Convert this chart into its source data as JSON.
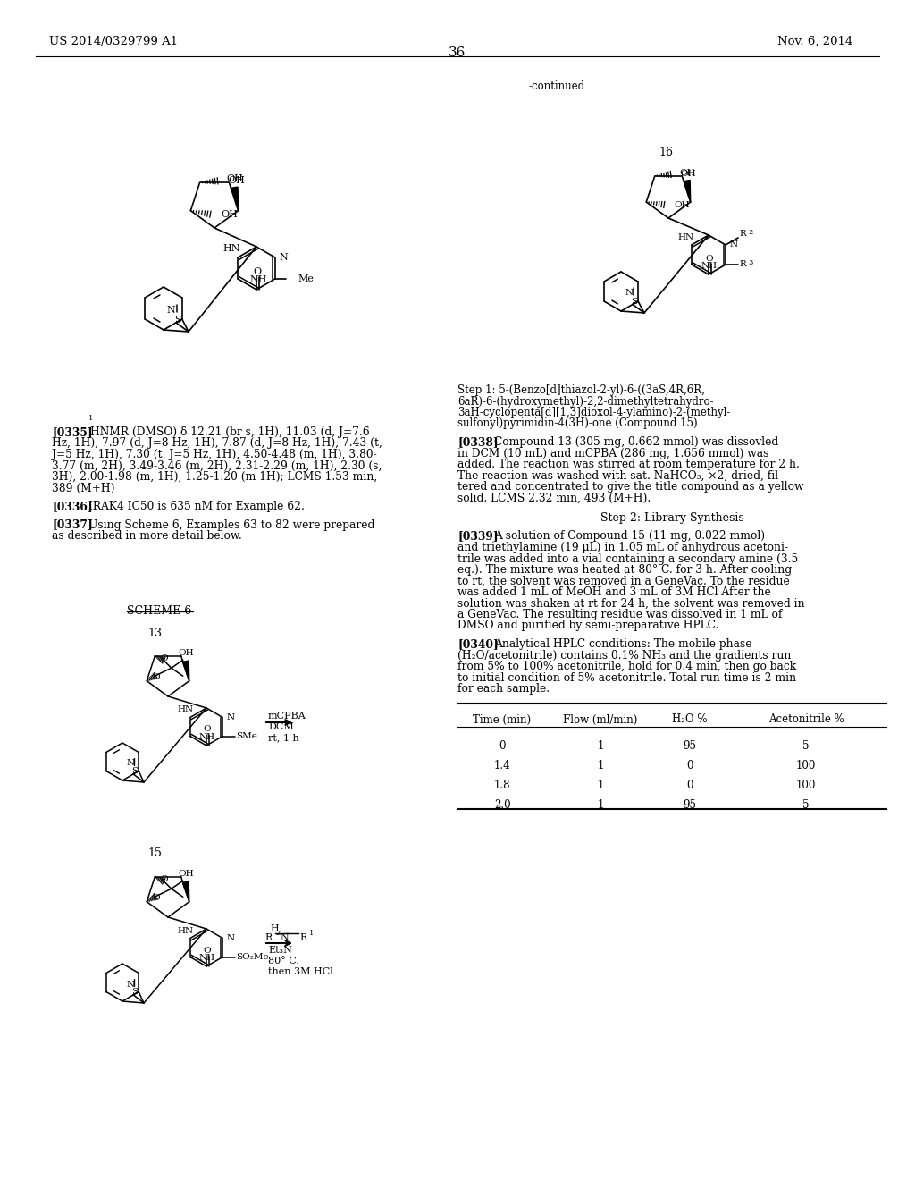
{
  "page_number": "36",
  "patent_number": "US 2014/0329799 A1",
  "patent_date": "Nov. 6, 2014",
  "continued_label": "-continued",
  "p0335_label": "[0335]",
  "p0335_text1": "HNMR (DMSO) δ 12.21 (br s, 1H), 11.03 (d, J=7.6",
  "p0335_text2": "Hz, 1H), 7.97 (d, J=8 Hz, 1H), 7.87 (d, J=8 Hz, 1H), 7.43 (t,",
  "p0335_text3": "J=5 Hz, 1H), 7.30 (t, J=5 Hz, 1H), 4.50-4.48 (m, 1H), 3.80-",
  "p0335_text4": "3.77 (m, 2H), 3.49-3.46 (m, 2H), 2.31-2.29 (m, 1H), 2.30 (s,",
  "p0335_text5": "3H), 2.00-1.98 (m, 1H), 1.25-1.20 (m 1H); LCMS 1.53 min,",
  "p0335_text6": "389 (M+H)",
  "p0336_label": "[0336]",
  "p0336_text": "IRAK4 IC50 is 635 nM for Example 62.",
  "p0337_label": "[0337]",
  "p0337_text1": "Using Scheme 6, Examples 63 to 82 were prepared",
  "p0337_text2": "as described in more detail below.",
  "scheme6_label": "SCHEME 6",
  "step1_title1": "Step 1: 5-(Benzo[d]thiazol-2-yl)-6-((3aS,4R,6R,",
  "step1_title2": "6aR)-6-(hydroxymethyl)-2,2-dimethyltetrahydro-",
  "step1_title3": "3aH-cyclopenta[d][1,3]dioxol-4-ylamino)-2-(methyl-",
  "step1_title4": "sulfonyl)pyrimidin-4(3H)-one (Compound 15)",
  "p0338_label": "[0338]",
  "p0338_text1": "Compound 13 (305 mg, 0.662 mmol) was dissovled",
  "p0338_text2": "in DCM (10 mL) and mCPBA (286 mg, 1.656 mmol) was",
  "p0338_text3": "added. The reaction was stirred at room temperature for 2 h.",
  "p0338_text4": "The reaction was washed with sat. NaHCO₃, ×2, dried, fil-",
  "p0338_text5": "tered and concentrated to give the title compound as a yellow",
  "p0338_text6": "solid. LCMS 2.32 min, 493 (M+H).",
  "step2_title": "Step 2: Library Synthesis",
  "p0339_label": "[0339]",
  "p0339_text1": "A solution of Compound 15 (11 mg, 0.022 mmol)",
  "p0339_text2": "and triethylamine (19 μL) in 1.05 mL of anhydrous acetoni-",
  "p0339_text3": "trile was added into a vial containing a secondary amine (3.5",
  "p0339_text4": "eq.). The mixture was heated at 80° C. for 3 h. After cooling",
  "p0339_text5": "to rt, the solvent was removed in a GeneVac. To the residue",
  "p0339_text6": "was added 1 mL of MeOH and 3 mL of 3M HCl After the",
  "p0339_text7": "solution was shaken at rt for 24 h, the solvent was removed in",
  "p0339_text8": "a GeneVac. The resulting residue was dissolved in 1 mL of",
  "p0339_text9": "DMSO and purified by semi-preparative HPLC.",
  "p0340_label": "[0340]",
  "p0340_text1": "Analytical HPLC conditions: The mobile phase",
  "p0340_text2": "(H₂O/acetonitrile) contains 0.1% NH₃ and the gradients run",
  "p0340_text3": "from 5% to 100% acetonitrile, hold for 0.4 min, then go back",
  "p0340_text4": "to initial condition of 5% acetonitrile. Total run time is 2 min",
  "p0340_text5": "for each sample.",
  "table_headers": [
    "Time (min)",
    "Flow (ml/min)",
    "H₂O %",
    "Acetonitrile %"
  ],
  "table_rows": [
    [
      "0",
      "1",
      "95",
      "5"
    ],
    [
      "1.4",
      "1",
      "0",
      "100"
    ],
    [
      "1.8",
      "1",
      "0",
      "100"
    ],
    [
      "2.0",
      "1",
      "95",
      "5"
    ]
  ],
  "bg_color": "#ffffff",
  "text_color": "#000000"
}
